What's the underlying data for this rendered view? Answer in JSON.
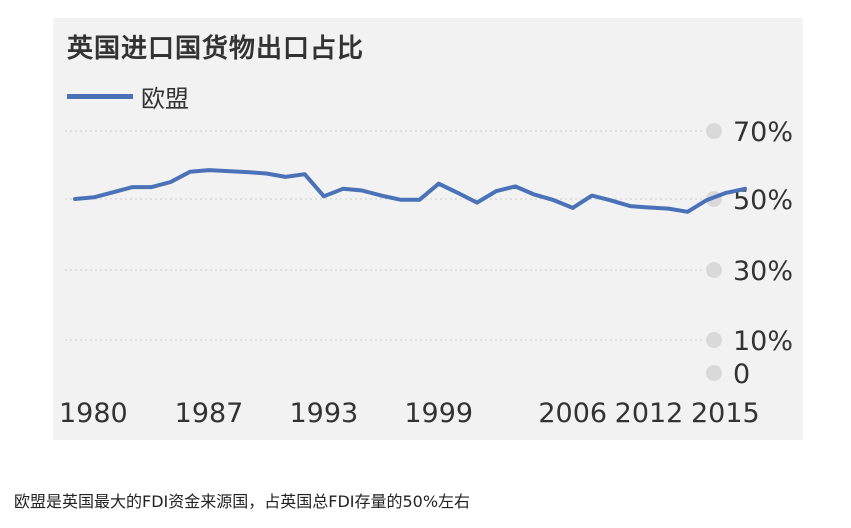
{
  "caption": "欧盟是英国最大的FDI资金来源国，占英国总FDI存量的50%左右",
  "colors": {
    "panel_background": "#f2f2f2",
    "series_line": "#4a72b8",
    "grid": "#cccccc",
    "tick_dot": "#d9d9d9"
  },
  "chart_data": {
    "type": "line",
    "title": "英国进口国货物出口占比",
    "xlabel": "",
    "ylabel": "",
    "legend_position": "top-left",
    "grid": true,
    "x_tick_labels": [
      "1980",
      "1987",
      "1993",
      "1999",
      "2006",
      "2012",
      "2015"
    ],
    "x_tick_values": [
      1980,
      1987,
      1993,
      1999,
      2006,
      2012,
      2015
    ],
    "y_tick_labels": [
      "70%",
      "50%",
      "30%",
      "10%",
      "0"
    ],
    "y_tick_values": [
      70,
      50,
      30,
      10,
      0
    ],
    "gridlines_at": [
      70,
      50,
      30,
      10
    ],
    "xlim": [
      1980,
      2015
    ],
    "ylim": [
      0,
      70
    ],
    "series": [
      {
        "name": "欧盟",
        "x": [
          1980,
          1981,
          1982,
          1983,
          1984,
          1985,
          1986,
          1987,
          1988,
          1989,
          1990,
          1991,
          1992,
          1993,
          1994,
          1995,
          1996,
          1997,
          1998,
          1999,
          2000,
          2001,
          2002,
          2003,
          2004,
          2005,
          2006,
          2007,
          2008,
          2009,
          2010,
          2011,
          2012,
          2013,
          2014,
          2015
        ],
        "values": [
          50,
          50.5,
          52,
          53.5,
          53.5,
          55,
          58,
          58.5,
          58.2,
          57.9,
          57.5,
          56.5,
          57.3,
          50.8,
          53,
          52.5,
          51,
          49.8,
          49.8,
          54.5,
          51.8,
          49,
          52.3,
          53.7,
          51.3,
          49.7,
          47.5,
          51,
          49.6,
          48,
          47.6,
          47.3,
          46.4,
          49.7,
          51.8,
          53
        ]
      }
    ]
  }
}
